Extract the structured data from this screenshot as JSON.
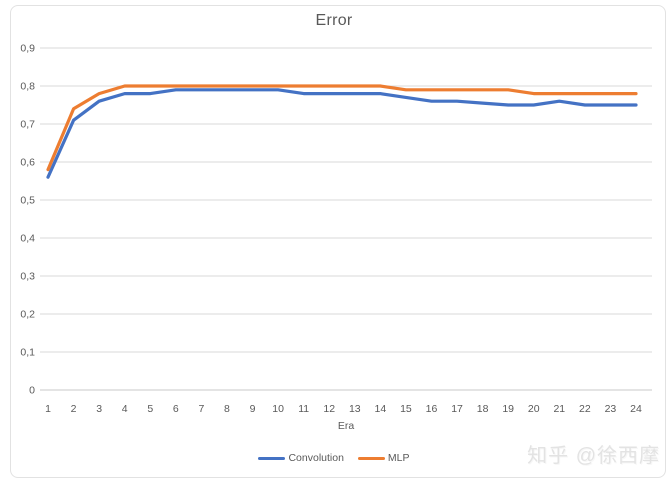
{
  "watermark": {
    "text": "知乎 @徐西摩"
  },
  "chart_data": {
    "type": "line",
    "title": "Error",
    "xlabel": "Era",
    "ylabel": "",
    "categories": [
      "1",
      "2",
      "3",
      "4",
      "5",
      "6",
      "7",
      "8",
      "9",
      "10",
      "11",
      "12",
      "13",
      "14",
      "15",
      "16",
      "17",
      "18",
      "19",
      "20",
      "21",
      "22",
      "23",
      "24"
    ],
    "series": [
      {
        "name": "Convolution",
        "color": "#4472C4",
        "values": [
          0.56,
          0.71,
          0.76,
          0.78,
          0.78,
          0.79,
          0.79,
          0.79,
          0.79,
          0.79,
          0.78,
          0.78,
          0.78,
          0.78,
          0.77,
          0.76,
          0.76,
          0.755,
          0.75,
          0.75,
          0.76,
          0.75,
          0.75,
          0.75
        ]
      },
      {
        "name": "MLP",
        "color": "#ED7D31",
        "values": [
          0.58,
          0.74,
          0.78,
          0.8,
          0.8,
          0.8,
          0.8,
          0.8,
          0.8,
          0.8,
          0.8,
          0.8,
          0.8,
          0.8,
          0.79,
          0.79,
          0.79,
          0.79,
          0.79,
          0.78,
          0.78,
          0.78,
          0.78,
          0.78
        ]
      }
    ],
    "ylim": [
      0,
      0.9
    ],
    "ytick_step": 0.1,
    "ytick_labels": [
      "0",
      "0,1",
      "0,2",
      "0,3",
      "0,4",
      "0,5",
      "0,6",
      "0,7",
      "0,8",
      "0,9"
    ],
    "decimal_separator": ",",
    "grid": true,
    "legend_position": "bottom",
    "colors": {
      "gridline": "#d9d9d9",
      "axis_line": "#c8c8c8",
      "tick_text": "#595959",
      "title_text": "#595959"
    }
  }
}
